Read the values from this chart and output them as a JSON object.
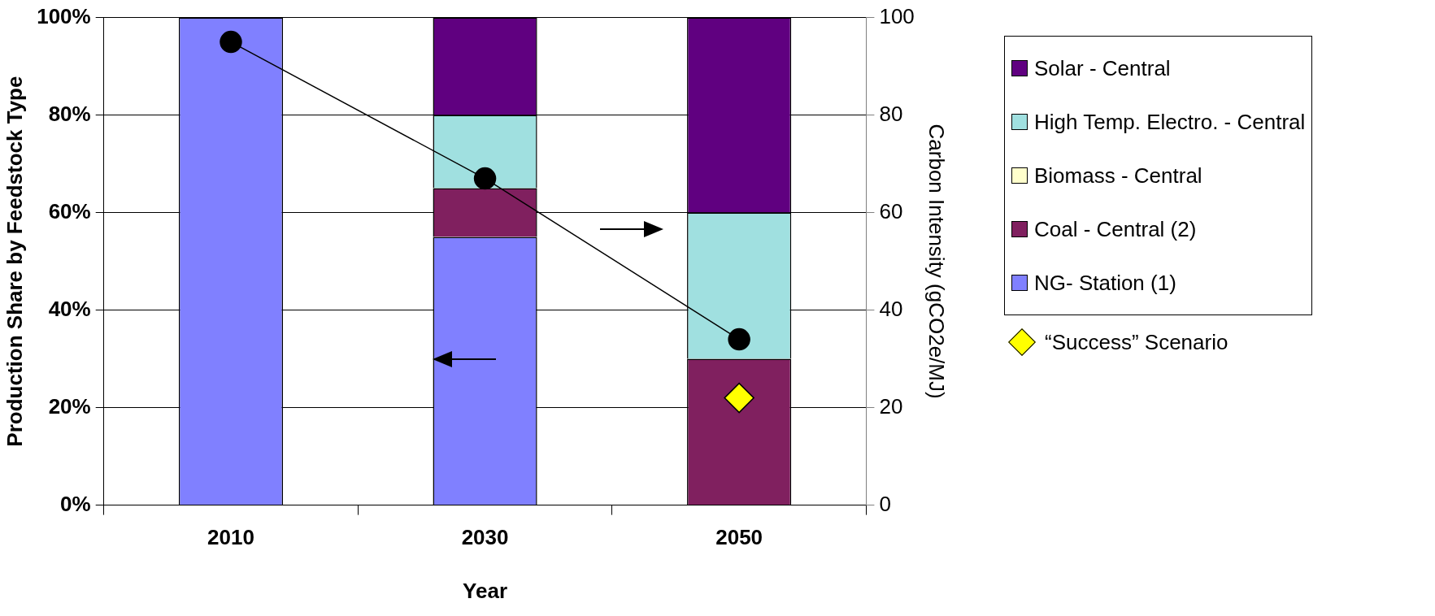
{
  "chart_data": {
    "type": "bar",
    "stacked": true,
    "xlabel": "Year",
    "ylabel": "Production Share by Feedstock Type",
    "y2label": "Carbon Intensity (gCO2e/MJ)",
    "categories": [
      "2010",
      "2030",
      "2050"
    ],
    "series": [
      {
        "name": "NG- Station (1)",
        "color": "#8080ff",
        "values": [
          100,
          55,
          0
        ]
      },
      {
        "name": "Coal - Central (2)",
        "color": "#80205f",
        "values": [
          0,
          10,
          30
        ]
      },
      {
        "name": "Biomass - Central",
        "color": "#ffffcc",
        "values": [
          0,
          0,
          0
        ]
      },
      {
        "name": "High Temp. Electro. - Central",
        "color": "#a0e0e0",
        "values": [
          0,
          15,
          30
        ]
      },
      {
        "name": "Solar - Central",
        "color": "#600080",
        "values": [
          0,
          20,
          40
        ]
      },
      {
        "type": "line",
        "axis": "y2",
        "color": "#000000",
        "marker": "circle",
        "values": [
          95,
          67,
          34
        ]
      },
      {
        "type": "scatter",
        "axis": "y2",
        "name": "“Success” Scenario",
        "color": "#ffff00",
        "marker": "diamond",
        "values": [
          null,
          null,
          22
        ]
      }
    ],
    "ylim": [
      0,
      100
    ],
    "yticks": [
      {
        "value": 0,
        "label": "0%"
      },
      {
        "value": 20,
        "label": "20%"
      },
      {
        "value": 40,
        "label": "40%"
      },
      {
        "value": 60,
        "label": "60%"
      },
      {
        "value": 80,
        "label": "80%"
      },
      {
        "value": 100,
        "label": "100%"
      }
    ],
    "y2lim": [
      0,
      100
    ],
    "y2ticks": [
      0,
      20,
      40,
      60,
      80,
      100
    ],
    "grid": "y",
    "legend": "right"
  }
}
